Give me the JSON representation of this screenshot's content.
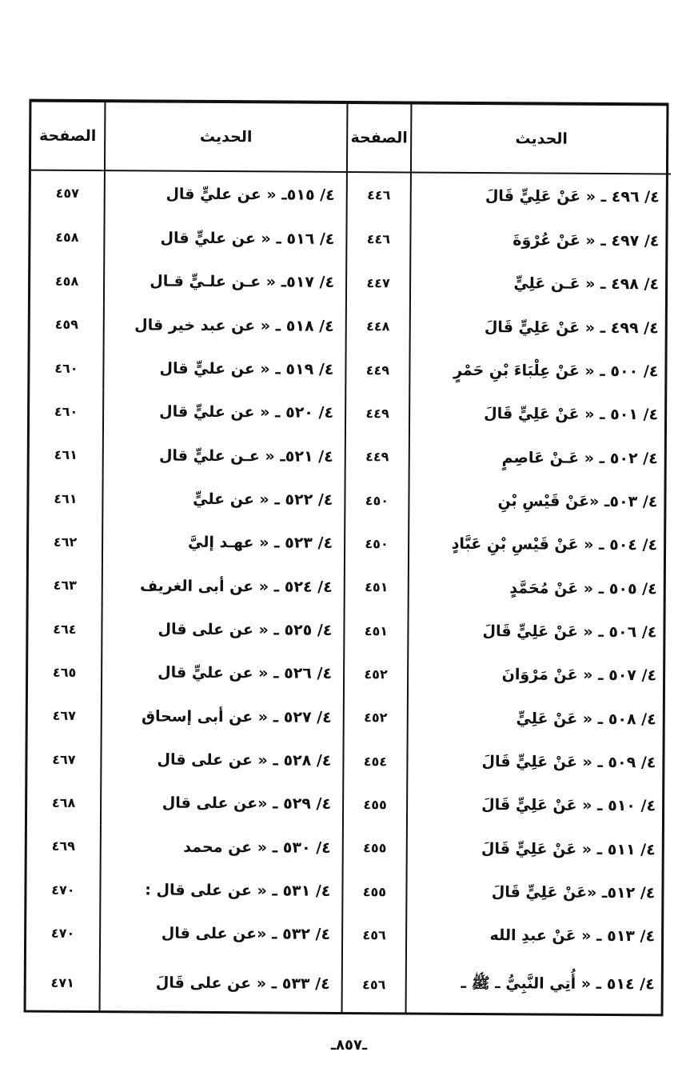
{
  "headers": {
    "hadith": "الحديث",
    "page": "الصفحة"
  },
  "right_rows": [
    {
      "hadith": "٤/ ٤٩٦ ـ « عَنْ عَلِيٍّ قَالَ",
      "page": "٤٤٦"
    },
    {
      "hadith": "٤/ ٤٩٧ ـ « عَنْ عُرْوَةَ",
      "page": "٤٤٦"
    },
    {
      "hadith": "٤/ ٤٩٨ ـ « عَـن عَلِيٍّ",
      "page": "٤٤٧"
    },
    {
      "hadith": "٤/ ٤٩٩ ـ « عَنْ عَلِيٍّ قَالَ",
      "page": "٤٤٨"
    },
    {
      "hadith": "٤/ ٥٠٠ ـ « عَنْ عِلْبَاءَ بْنِ حَمْرٍ",
      "page": "٤٤٩"
    },
    {
      "hadith": "٤/ ٥٠١ ـ « عَنْ عَلِيٍّ قَالَ",
      "page": "٤٤٩"
    },
    {
      "hadith": "٤/ ٥٠٢ ـ « عَـنْ عَاصِمٍ",
      "page": "٤٤٩"
    },
    {
      "hadith": "٤/ ٥٠٣ـ «عَنْ قَيْسِ بْنِ",
      "page": "٤٥٠"
    },
    {
      "hadith": "٤/ ٥٠٤ ـ « عَنْ قَيْسِ بْنِ عَبَّادٍ",
      "page": "٤٥٠"
    },
    {
      "hadith": "٤/ ٥٠٥ ـ « عَنْ مُحَمَّدٍ",
      "page": "٤٥١"
    },
    {
      "hadith": "٤/ ٥٠٦ ـ « عَنْ عَلِيٍّ قَالَ",
      "page": "٤٥١"
    },
    {
      "hadith": "٤/ ٥٠٧ ـ « عَنْ مَرْوَانَ",
      "page": "٤٥٢"
    },
    {
      "hadith": "٤/ ٥٠٨ ـ « عَنْ عَلِيٍّ",
      "page": "٤٥٢"
    },
    {
      "hadith": "٤/ ٥٠٩ ـ « عَنْ عَلِيٍّ قَالَ",
      "page": "٤٥٤"
    },
    {
      "hadith": "٤/ ٥١٠ ـ « عَنْ عَلِيٍّ قَالَ",
      "page": "٤٥٥"
    },
    {
      "hadith": "٤/ ٥١١ ـ « عَنْ عَلِيٍّ قَالَ",
      "page": "٤٥٥"
    },
    {
      "hadith": "٤/ ٥١٢ـ «عَنْ عَلِيٍّ قَالَ",
      "page": "٤٥٥"
    },
    {
      "hadith": "٤/ ٥١٣ ـ « عَنْ عبدِ الله",
      "page": "٤٥٦"
    },
    {
      "hadith": "٤/ ٥١٤ ـ « أُتِي النَّبِيُّ ـ ﷺ ـ",
      "page": "٤٥٦"
    }
  ],
  "left_rows": [
    {
      "hadith": "٤/ ٥١٥ـ « عن عليٍّ قال",
      "page": "٤٥٧"
    },
    {
      "hadith": "٤/ ٥١٦ ـ « عن عليٍّ قال",
      "page": "٤٥٨"
    },
    {
      "hadith": "٤/ ٥١٧ـ « عـن علـيٍّ قـال",
      "page": "٤٥٨"
    },
    {
      "hadith": "٤/ ٥١٨ ـ « عن عبد خير قال",
      "page": "٤٥٩"
    },
    {
      "hadith": "٤/ ٥١٩ ـ « عن عليٍّ قال",
      "page": "٤٦٠"
    },
    {
      "hadith": "٤/ ٥٢٠ ـ « عن عليٍّ قال",
      "page": "٤٦٠"
    },
    {
      "hadith": "٤/ ٥٢١ـ « عـن عليٍّ قال",
      "page": "٤٦١"
    },
    {
      "hadith": "٤/ ٥٢٢ ـ « عن عليٍّ",
      "page": "٤٦١"
    },
    {
      "hadith": "٤/ ٥٢٣ ـ «   عهـد إليَّ",
      "page": "٤٦٢"
    },
    {
      "hadith": "٤/ ٥٢٤ ـ « عن أبى الغريف",
      "page": "٤٦٣"
    },
    {
      "hadith": "٤/ ٥٢٥ ـ « عن على قال",
      "page": "٤٦٤"
    },
    {
      "hadith": "٤/ ٥٢٦ ـ « عن عليٍّ قال",
      "page": "٤٦٥"
    },
    {
      "hadith": "٤/ ٥٢٧ ـ « عن أبى إسحاق",
      "page": "٤٦٧"
    },
    {
      "hadith": "٤/ ٥٢٨ ـ « عن على قال",
      "page": "٤٦٧"
    },
    {
      "hadith": "٤/ ٥٢٩ ـ «عن على قال",
      "page": "٤٦٨"
    },
    {
      "hadith": "٤/ ٥٣٠ ـ « عن محمد",
      "page": "٤٦٩"
    },
    {
      "hadith": "٤/ ٥٣١ ـ «  عن على قال :",
      "page": "٤٧٠"
    },
    {
      "hadith": "٤/ ٥٣٢ ـ «عن على قال",
      "page": "٤٧٠"
    },
    {
      "hadith": "٤/ ٥٣٣ ـ « عن على قَالَ",
      "page": "٤٧١"
    }
  ],
  "footer": {
    "page_number": "ـ٨٥٧ـ"
  }
}
